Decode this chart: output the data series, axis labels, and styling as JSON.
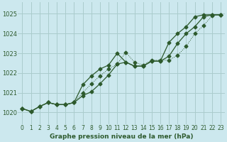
{
  "title": "Graphe pression niveau de la mer (hPa)",
  "background_color": "#cce8ee",
  "grid_color": "#aacccc",
  "line_color": "#2d5a2d",
  "xlim": [
    -0.5,
    23.5
  ],
  "ylim": [
    1019.4,
    1025.6
  ],
  "yticks": [
    1020,
    1021,
    1022,
    1023,
    1024,
    1025
  ],
  "xticks": [
    0,
    1,
    2,
    3,
    4,
    5,
    6,
    7,
    8,
    9,
    10,
    11,
    12,
    13,
    14,
    15,
    16,
    17,
    18,
    19,
    20,
    21,
    22,
    23
  ],
  "hours": [
    0,
    1,
    2,
    3,
    4,
    5,
    6,
    7,
    8,
    9,
    10,
    11,
    12,
    13,
    14,
    15,
    16,
    17,
    18,
    19,
    20,
    21,
    22,
    23
  ],
  "line_main": [
    1020.2,
    1020.05,
    1020.3,
    1020.5,
    1020.4,
    1020.4,
    1020.5,
    1020.85,
    1021.05,
    1021.45,
    1021.9,
    1022.45,
    1022.55,
    1022.35,
    1022.35,
    1022.6,
    1022.6,
    1022.85,
    1023.5,
    1024.0,
    1024.35,
    1024.85,
    1024.95,
    1024.95
  ],
  "line_upper": [
    1020.2,
    1020.05,
    1020.3,
    1020.5,
    1020.4,
    1020.4,
    1020.5,
    1021.4,
    1021.85,
    1022.2,
    1022.4,
    1023.0,
    1022.55,
    1022.35,
    1022.35,
    1022.6,
    1022.6,
    1023.55,
    1024.0,
    1024.35,
    1024.85,
    1024.95,
    1024.95,
    1024.95
  ],
  "line_dotted": [
    1020.2,
    1020.05,
    1020.3,
    1020.5,
    1020.4,
    1020.4,
    1020.5,
    1021.0,
    1021.45,
    1021.85,
    1022.2,
    1022.45,
    1023.05,
    1022.55,
    1022.4,
    1022.65,
    1022.65,
    1022.65,
    1022.9,
    1023.35,
    1024.0,
    1024.4,
    1024.9,
    1024.95
  ]
}
